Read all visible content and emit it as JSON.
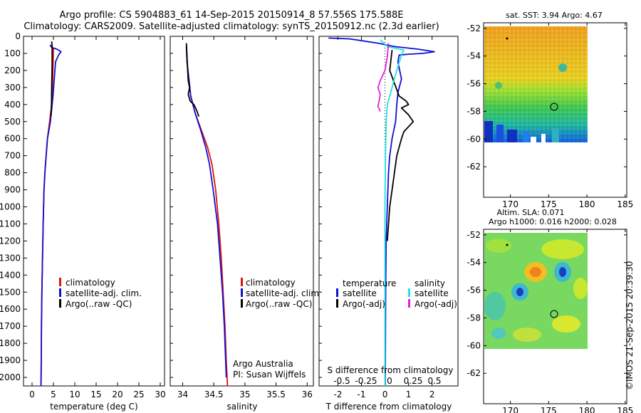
{
  "header": {
    "line1": "Argo profile: CS 5904883_61 14-Sep-2015 20150914_8 57.556S 175.588E",
    "line2": "Climatology: CARS2009. Satellite-adjusted climatology: synTS_20150912.nc (2.3d earlier)"
  },
  "colors": {
    "climatology": "#e01010",
    "satellite": "#1010d0",
    "argo": "#000000",
    "sat_salinity": "#20e0e8",
    "argo_salinity": "#e020e0"
  },
  "depth_axis": {
    "ylim": [
      0,
      2050
    ],
    "ticks": [
      "0",
      "100",
      "200",
      "300",
      "400",
      "500",
      "600",
      "700",
      "800",
      "900",
      "1000",
      "1100",
      "1200",
      "1300",
      "1400",
      "1500",
      "1600",
      "1700",
      "1800",
      "1900",
      "2000"
    ]
  },
  "chart_data": [
    {
      "type": "line",
      "xlabel": "temperature (deg C)",
      "xlim": [
        -2,
        31
      ],
      "xticks": [
        "0",
        "5",
        "10",
        "15",
        "20",
        "25",
        "30"
      ],
      "legend": [
        "climatology",
        "satellite-adj. clim.",
        "Argo(..raw -QC)"
      ],
      "series": [
        {
          "name": "climatology",
          "color": "climatology",
          "points": [
            [
              5.0,
              70
            ],
            [
              4.9,
              200
            ],
            [
              4.6,
              400
            ],
            [
              4.1,
              500
            ],
            [
              3.6,
              600
            ],
            [
              3.3,
              700
            ],
            [
              3.0,
              800
            ],
            [
              2.8,
              900
            ],
            [
              2.6,
              1100
            ],
            [
              2.45,
              1300
            ],
            [
              2.3,
              1500
            ],
            [
              2.2,
              1700
            ],
            [
              2.15,
              1900
            ],
            [
              2.1,
              2050
            ]
          ]
        },
        {
          "name": "satellite-adj. clim.",
          "color": "satellite",
          "points": [
            [
              4.2,
              50
            ],
            [
              4.6,
              65
            ],
            [
              5.8,
              75
            ],
            [
              6.8,
              90
            ],
            [
              6.2,
              110
            ],
            [
              5.5,
              150
            ],
            [
              5.2,
              250
            ],
            [
              4.9,
              350
            ],
            [
              4.3,
              500
            ],
            [
              3.6,
              600
            ],
            [
              3.3,
              700
            ],
            [
              3.0,
              800
            ],
            [
              2.8,
              900
            ],
            [
              2.6,
              1100
            ],
            [
              2.45,
              1300
            ],
            [
              2.3,
              1500
            ],
            [
              2.2,
              1700
            ],
            [
              2.15,
              1900
            ],
            [
              2.1,
              2050
            ]
          ]
        },
        {
          "name": "Argo(..raw -QC)",
          "color": "argo",
          "points": [
            [
              4.6,
              30
            ],
            [
              4.7,
              60
            ],
            [
              4.7,
              150
            ],
            [
              4.6,
              300
            ],
            [
              4.55,
              400
            ],
            [
              4.4,
              470
            ]
          ]
        }
      ]
    },
    {
      "type": "line",
      "xlabel": "salinity",
      "xlim": [
        33.8,
        36.1
      ],
      "xticks": [
        "34",
        "34.5",
        "35",
        "35.5",
        "36"
      ],
      "legend": [
        "climatology",
        "satellite-adj. clim.",
        "Argo(..raw -QC)"
      ],
      "annotation": [
        "Argo Australia",
        "PI: Susan Wijffels"
      ],
      "series": [
        {
          "name": "climatology",
          "color": "climatology",
          "points": [
            [
              34.06,
              60
            ],
            [
              34.07,
              150
            ],
            [
              34.1,
              250
            ],
            [
              34.13,
              350
            ],
            [
              34.2,
              450
            ],
            [
              34.3,
              550
            ],
            [
              34.4,
              650
            ],
            [
              34.47,
              750
            ],
            [
              34.53,
              900
            ],
            [
              34.58,
              1100
            ],
            [
              34.62,
              1300
            ],
            [
              34.65,
              1500
            ],
            [
              34.68,
              1700
            ],
            [
              34.7,
              1900
            ],
            [
              34.72,
              2050
            ]
          ]
        },
        {
          "name": "satellite-adj. clim.",
          "color": "satellite",
          "points": [
            [
              34.06,
              55
            ],
            [
              34.07,
              150
            ],
            [
              34.1,
              250
            ],
            [
              34.13,
              350
            ],
            [
              34.2,
              450
            ],
            [
              34.29,
              550
            ],
            [
              34.37,
              650
            ],
            [
              34.43,
              750
            ],
            [
              34.49,
              900
            ],
            [
              34.56,
              1100
            ],
            [
              34.6,
              1300
            ],
            [
              34.64,
              1500
            ],
            [
              34.67,
              1700
            ],
            [
              34.69,
              1900
            ],
            [
              34.7,
              2000
            ]
          ]
        },
        {
          "name": "Argo(..raw -QC)",
          "color": "argo",
          "points": [
            [
              34.06,
              40
            ],
            [
              34.07,
              120
            ],
            [
              34.08,
              200
            ],
            [
              34.09,
              260
            ],
            [
              34.11,
              300
            ],
            [
              34.09,
              340
            ],
            [
              34.12,
              380
            ],
            [
              34.18,
              400
            ],
            [
              34.22,
              430
            ],
            [
              34.26,
              470
            ]
          ]
        }
      ]
    },
    {
      "type": "line",
      "xlabel": "T difference from climatology",
      "xlim": [
        -2.8,
        3.1
      ],
      "xticks": [
        "-2",
        "-1",
        "0",
        "1",
        "2"
      ],
      "top_axis_label": "S difference from climatology",
      "top_axis_ticks": [
        "-0.5",
        "-0.25",
        "0",
        "0.25",
        "0.5"
      ],
      "legend_headers": [
        "temperature",
        "salinity"
      ],
      "legend_left": [
        "satellite",
        "Argo(-adj)"
      ],
      "legend_right": [
        "satellite",
        "Argo(-adj)"
      ],
      "series": [
        {
          "name": "T satellite",
          "color": "satellite",
          "points": [
            [
              -2.4,
              10
            ],
            [
              -1.5,
              15
            ],
            [
              -0.3,
              40
            ],
            [
              0.4,
              60
            ],
            [
              1.4,
              75
            ],
            [
              2.1,
              90
            ],
            [
              1.6,
              100
            ],
            [
              1.0,
              105
            ],
            [
              0.6,
              110
            ],
            [
              0.55,
              150
            ],
            [
              0.7,
              250
            ],
            [
              0.55,
              330
            ],
            [
              0.5,
              400
            ],
            [
              0.45,
              500
            ],
            [
              0.3,
              600
            ],
            [
              0.2,
              700
            ],
            [
              0.15,
              800
            ],
            [
              0.1,
              1000
            ],
            [
              0.05,
              1200
            ],
            [
              0.03,
              1500
            ],
            [
              0.02,
              1800
            ],
            [
              0.01,
              2050
            ]
          ]
        },
        {
          "name": "T Argo(-adj)",
          "color": "argo",
          "points": [
            [
              0.3,
              80
            ],
            [
              0.2,
              200
            ],
            [
              0.6,
              350
            ],
            [
              0.9,
              380
            ],
            [
              1.0,
              400
            ],
            [
              0.7,
              420
            ],
            [
              1.0,
              460
            ],
            [
              1.2,
              500
            ],
            [
              0.8,
              560
            ],
            [
              0.7,
              600
            ],
            [
              0.5,
              700
            ],
            [
              0.4,
              800
            ],
            [
              0.3,
              900
            ],
            [
              0.2,
              1000
            ],
            [
              0.15,
              1100
            ],
            [
              0.1,
              1200
            ]
          ]
        },
        {
          "name": "S satellite",
          "color": "sat_salinity",
          "points": [
            [
              -0.2,
              20
            ],
            [
              0.1,
              60
            ],
            [
              0.8,
              80
            ],
            [
              0.7,
              110
            ],
            [
              0.5,
              200
            ],
            [
              0.3,
              300
            ],
            [
              0.1,
              400
            ],
            [
              0.05,
              500
            ],
            [
              0.02,
              700
            ],
            [
              0.0,
              1000
            ],
            [
              0.0,
              2050
            ]
          ]
        },
        {
          "name": "S Argo(-adj)",
          "color": "argo_salinity",
          "points": [
            [
              0.15,
              40
            ],
            [
              0.1,
              120
            ],
            [
              0.0,
              200
            ],
            [
              -0.2,
              260
            ],
            [
              -0.3,
              300
            ],
            [
              -0.2,
              340
            ],
            [
              -0.25,
              380
            ],
            [
              -0.3,
              410
            ],
            [
              -0.2,
              440
            ]
          ]
        }
      ]
    },
    {
      "type": "heatmap",
      "title": "sat. SST: 3.94  Argo: 4.67",
      "xlim": [
        166.5,
        185.2
      ],
      "ylim": [
        -64.2,
        -51.6
      ],
      "xticks": [
        "170",
        "175",
        "180",
        "185"
      ],
      "yticks": [
        "-52",
        "-54",
        "-56",
        "-58",
        "-60",
        "-62"
      ],
      "extent": {
        "lon": [
          166.5,
          180
        ],
        "lat": [
          -60,
          -51.6
        ]
      },
      "marker": {
        "lon": 175.6,
        "lat": -57.6
      }
    },
    {
      "type": "heatmap",
      "title_lines": [
        "Altim. SLA: 0.071",
        "Argo h1000: 0.016 h2000: 0.028"
      ],
      "xlim": [
        166.5,
        185.2
      ],
      "ylim": [
        -64.2,
        -51.6
      ],
      "xticks": [
        "170",
        "175",
        "180",
        "185"
      ],
      "yticks": [
        "-52",
        "-54",
        "-56",
        "-58",
        "-60",
        "-62"
      ],
      "extent": {
        "lon": [
          166.5,
          180
        ],
        "lat": [
          -60,
          -51.6
        ]
      },
      "marker": {
        "lon": 175.6,
        "lat": -57.6
      }
    }
  ],
  "stamp": "©IMOS 21-Sep-2015 20:39:30"
}
